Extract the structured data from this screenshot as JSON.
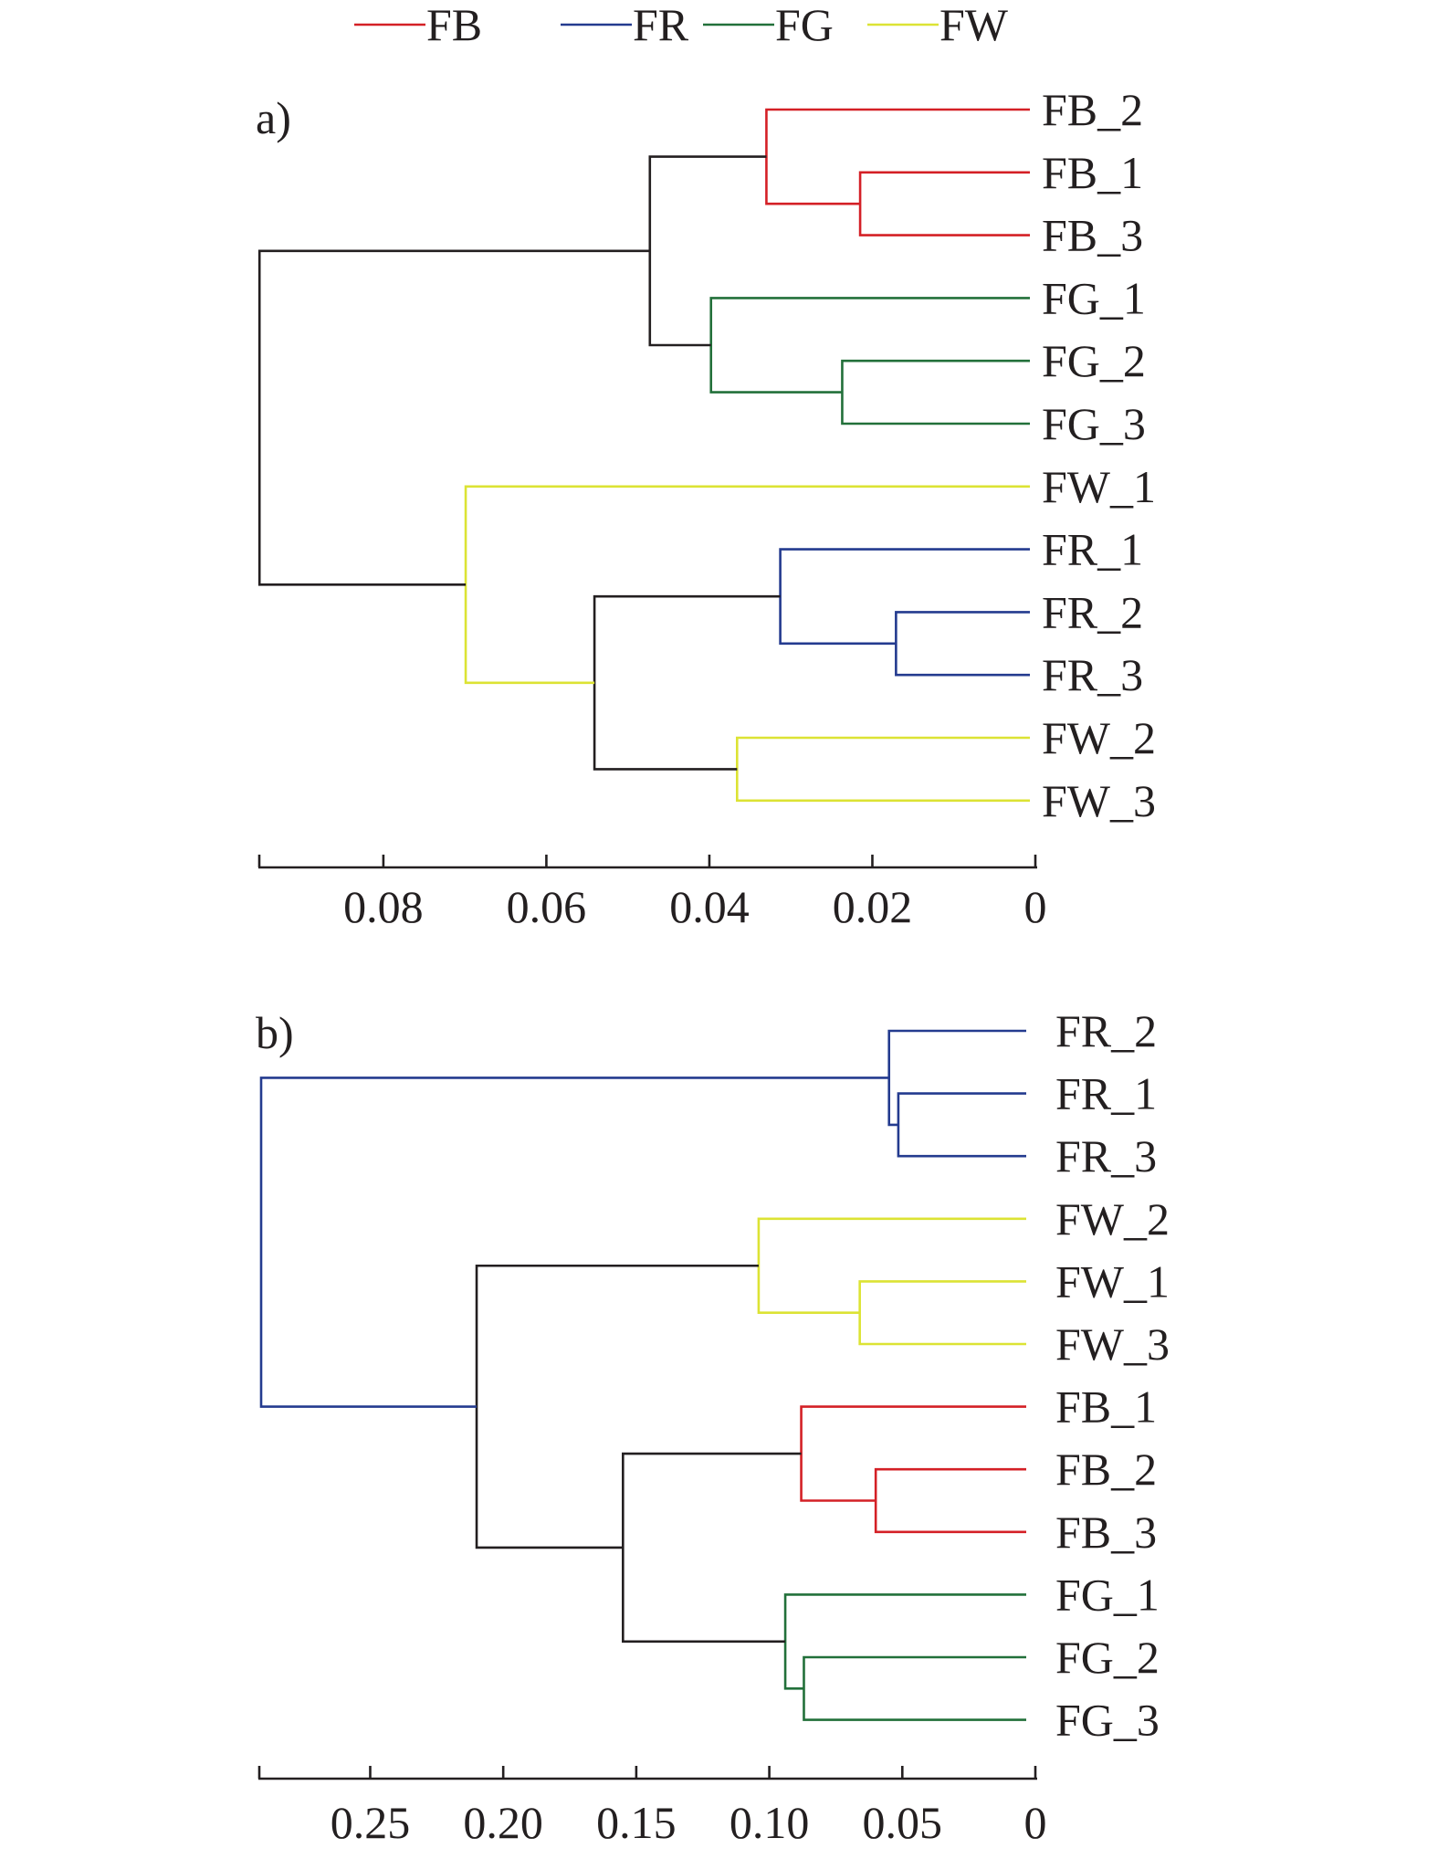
{
  "chart_data": [
    {
      "type": "dendrogram",
      "panel_label": "a)",
      "orientation": "horizontal",
      "x_direction": "reversed",
      "xlim": [
        0.095,
        0
      ],
      "xticks": [
        0.08,
        0.06,
        0.04,
        0.02,
        0
      ],
      "xtick_labels": [
        "0.08",
        "0.06",
        "0.04",
        "0.02",
        "0"
      ],
      "leaves": [
        {
          "label": "FB_2",
          "group": "FB"
        },
        {
          "label": "FB_1",
          "group": "FB"
        },
        {
          "label": "FB_3",
          "group": "FB"
        },
        {
          "label": "FG_1",
          "group": "FG"
        },
        {
          "label": "FG_2",
          "group": "FG"
        },
        {
          "label": "FG_3",
          "group": "FG"
        },
        {
          "label": "FW_1",
          "group": "FW"
        },
        {
          "label": "FR_1",
          "group": "FR"
        },
        {
          "label": "FR_2",
          "group": "FR"
        },
        {
          "label": "FR_3",
          "group": "FR"
        },
        {
          "label": "FW_2",
          "group": "FW"
        },
        {
          "label": "FW_3",
          "group": "FW"
        }
      ],
      "merges": [
        {
          "id": "a1",
          "children": [
            "FB_1",
            "FB_3"
          ],
          "height": 0.0215,
          "group": "FB"
        },
        {
          "id": "a2",
          "children": [
            "FB_2",
            "a1"
          ],
          "height": 0.033,
          "group": "FB"
        },
        {
          "id": "a3",
          "children": [
            "FG_2",
            "FG_3"
          ],
          "height": 0.0237,
          "group": "FG"
        },
        {
          "id": "a4",
          "children": [
            "FG_1",
            "a3"
          ],
          "height": 0.0398,
          "group": "FG"
        },
        {
          "id": "a5",
          "children": [
            "a2",
            "a4"
          ],
          "height": 0.0473,
          "group": "none"
        },
        {
          "id": "a6",
          "children": [
            "FR_2",
            "FR_3"
          ],
          "height": 0.0171,
          "group": "FR"
        },
        {
          "id": "a7",
          "children": [
            "FR_1",
            "a6"
          ],
          "height": 0.0313,
          "group": "FR"
        },
        {
          "id": "a8",
          "children": [
            "FW_2",
            "FW_3"
          ],
          "height": 0.0366,
          "group": "FW"
        },
        {
          "id": "a9",
          "children": [
            "a7",
            "a8"
          ],
          "height": 0.0541,
          "group": "none"
        },
        {
          "id": "a10",
          "children": [
            "FW_1",
            "a9"
          ],
          "height": 0.0699,
          "group": "FW"
        },
        {
          "id": "a11",
          "children": [
            "a5",
            "a10"
          ],
          "height": 0.0952,
          "group": "none"
        }
      ]
    },
    {
      "type": "dendrogram",
      "panel_label": "b)",
      "orientation": "horizontal",
      "x_direction": "reversed",
      "xlim": [
        0.291,
        0
      ],
      "xticks": [
        0.25,
        0.2,
        0.15,
        0.1,
        0.05,
        0
      ],
      "xtick_labels": [
        "0.25",
        "0.20",
        "0.15",
        "0.10",
        "0.05",
        "0"
      ],
      "leaves": [
        {
          "label": "FR_2",
          "group": "FR"
        },
        {
          "label": "FR_1",
          "group": "FR"
        },
        {
          "label": "FR_3",
          "group": "FR"
        },
        {
          "label": "FW_2",
          "group": "FW"
        },
        {
          "label": "FW_1",
          "group": "FW"
        },
        {
          "label": "FW_3",
          "group": "FW"
        },
        {
          "label": "FB_1",
          "group": "FB"
        },
        {
          "label": "FB_2",
          "group": "FB"
        },
        {
          "label": "FB_3",
          "group": "FB"
        },
        {
          "label": "FG_1",
          "group": "FG"
        },
        {
          "label": "FG_2",
          "group": "FG"
        },
        {
          "label": "FG_3",
          "group": "FG"
        }
      ],
      "merges": [
        {
          "id": "b1",
          "children": [
            "FR_1",
            "FR_3"
          ],
          "height": 0.0515,
          "group": "FR"
        },
        {
          "id": "b2",
          "children": [
            "FR_2",
            "b1"
          ],
          "height": 0.055,
          "group": "FR"
        },
        {
          "id": "b3",
          "children": [
            "FW_1",
            "FW_3"
          ],
          "height": 0.066,
          "group": "FW"
        },
        {
          "id": "b4",
          "children": [
            "FW_2",
            "b3"
          ],
          "height": 0.104,
          "group": "FW"
        },
        {
          "id": "b5",
          "children": [
            "FB_2",
            "FB_3"
          ],
          "height": 0.06,
          "group": "FB"
        },
        {
          "id": "b6",
          "children": [
            "FB_1",
            "b5"
          ],
          "height": 0.088,
          "group": "FB"
        },
        {
          "id": "b7",
          "children": [
            "FG_2",
            "FG_3"
          ],
          "height": 0.087,
          "group": "FG"
        },
        {
          "id": "b8",
          "children": [
            "FG_1",
            "b7"
          ],
          "height": 0.094,
          "group": "FG"
        },
        {
          "id": "b9",
          "children": [
            "b6",
            "b8"
          ],
          "height": 0.155,
          "group": "none"
        },
        {
          "id": "b10",
          "children": [
            "b4",
            "b9"
          ],
          "height": 0.21,
          "group": "none"
        },
        {
          "id": "b11",
          "children": [
            "b2",
            "b10"
          ],
          "height": 0.291,
          "group": "FR"
        }
      ]
    }
  ],
  "legend": {
    "placement": "top-center",
    "entries": [
      {
        "name": "FB",
        "color": "#d42026"
      },
      {
        "name": "FR",
        "color": "#243b8f"
      },
      {
        "name": "FG",
        "color": "#22703a"
      },
      {
        "name": "FW",
        "color": "#dce334"
      }
    ]
  },
  "colors": {
    "FB": "#d42026",
    "FR": "#243b8f",
    "FG": "#22703a",
    "FW": "#dce334",
    "none": "#231f20"
  }
}
